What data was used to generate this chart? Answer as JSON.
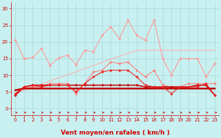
{
  "x": [
    0,
    1,
    2,
    3,
    4,
    5,
    6,
    7,
    8,
    9,
    10,
    11,
    12,
    13,
    14,
    15,
    16,
    17,
    18,
    19,
    20,
    21,
    22,
    23
  ],
  "series": [
    {
      "name": "light_pink_top",
      "color": "#FF9999",
      "lw": 0.8,
      "marker": "D",
      "markersize": 1.8,
      "values": [
        20.5,
        15.0,
        15.3,
        18.0,
        13.0,
        15.2,
        16.0,
        13.2,
        17.5,
        17.0,
        22.0,
        24.5,
        21.0,
        26.5,
        22.0,
        20.5,
        26.5,
        15.0,
        10.0,
        15.0,
        15.0,
        15.0,
        9.5,
        13.5
      ]
    },
    {
      "name": "light_pink_linear",
      "color": "#FFB0B0",
      "lw": 0.8,
      "marker": null,
      "markersize": 0,
      "values": [
        4.5,
        5.5,
        6.4,
        7.3,
        8.3,
        9.2,
        10.1,
        11.0,
        12.0,
        12.9,
        13.8,
        14.8,
        15.7,
        16.6,
        17.5,
        17.5,
        17.5,
        17.5,
        17.5,
        17.5,
        17.5,
        17.5,
        17.5,
        17.5
      ]
    },
    {
      "name": "pink_trend1",
      "color": "#FF8080",
      "lw": 0.8,
      "marker": "D",
      "markersize": 1.8,
      "values": [
        4.5,
        6.5,
        6.5,
        6.5,
        7.5,
        7.5,
        7.5,
        4.5,
        7.5,
        11.0,
        11.5,
        14.0,
        13.5,
        14.0,
        11.5,
        9.5,
        11.5,
        7.0,
        6.5,
        6.5,
        7.5,
        7.5,
        7.5,
        7.5
      ]
    },
    {
      "name": "red_lower",
      "color": "#CC0000",
      "lw": 1.2,
      "marker": "D",
      "markersize": 1.8,
      "values": [
        4.0,
        6.5,
        7.0,
        7.0,
        7.0,
        7.0,
        7.0,
        7.0,
        7.0,
        7.0,
        7.0,
        7.0,
        7.0,
        7.0,
        7.0,
        6.5,
        6.5,
        6.5,
        6.5,
        6.5,
        6.5,
        7.0,
        7.0,
        4.0
      ]
    },
    {
      "name": "red_flat",
      "color": "#BB0000",
      "lw": 1.8,
      "marker": null,
      "markersize": 0,
      "values": [
        5.5,
        6.0,
        6.0,
        6.0,
        6.0,
        6.0,
        6.0,
        6.0,
        6.0,
        6.0,
        6.0,
        6.0,
        6.0,
        6.0,
        6.0,
        6.0,
        6.0,
        6.0,
        6.0,
        6.0,
        6.0,
        6.0,
        6.0,
        6.0
      ]
    },
    {
      "name": "red_trend2",
      "color": "#EE2222",
      "lw": 0.8,
      "marker": "D",
      "markersize": 1.8,
      "values": [
        4.5,
        6.5,
        7.0,
        6.5,
        7.0,
        7.0,
        7.0,
        5.0,
        7.5,
        9.5,
        11.0,
        11.5,
        11.5,
        11.5,
        9.5,
        7.0,
        6.5,
        6.5,
        4.5,
        6.5,
        6.5,
        6.5,
        7.5,
        4.0
      ]
    }
  ],
  "xlabel": "Vent moyen/en rafales ( km/h )",
  "ylim": [
    -2,
    32
  ],
  "xlim": [
    -0.5,
    23.5
  ],
  "yticks": [
    0,
    5,
    10,
    15,
    20,
    25,
    30
  ],
  "xticks": [
    0,
    1,
    2,
    3,
    4,
    5,
    6,
    7,
    8,
    9,
    10,
    11,
    12,
    13,
    14,
    15,
    16,
    17,
    18,
    19,
    20,
    21,
    22,
    23
  ],
  "bg_color": "#C8F0F0",
  "grid_color": "#A8D8D8",
  "text_color": "#CC0000",
  "tick_color": "#CC0000",
  "xlabel_fontsize": 6.5,
  "tick_fontsize": 5.0
}
